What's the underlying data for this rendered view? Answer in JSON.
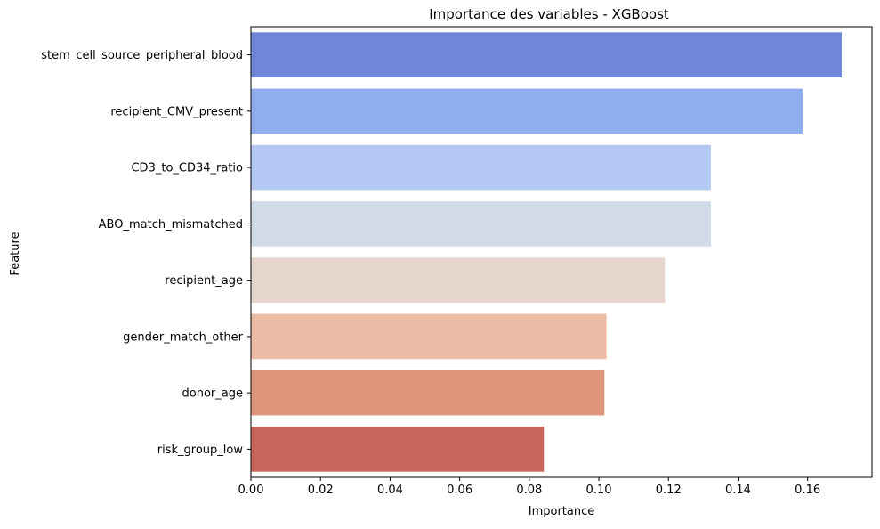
{
  "chart_data": {
    "type": "bar",
    "orientation": "horizontal",
    "title": "Importance des variables - XGBoost",
    "xlabel": "Importance",
    "ylabel": "Feature",
    "categories": [
      "stem_cell_source_peripheral_blood",
      "recipient_CMV_present",
      "CD3_to_CD34_ratio",
      "ABO_match_mismatched",
      "recipient_age",
      "gender_match_other",
      "donor_age",
      "risk_group_low"
    ],
    "values": [
      0.1698,
      0.1586,
      0.1322,
      0.1322,
      0.119,
      0.1022,
      0.1016,
      0.0842
    ],
    "colors": [
      "#6e87d8",
      "#90adee",
      "#b4c9f3",
      "#d1dae8",
      "#e5d5cd",
      "#ecbca6",
      "#e0957d",
      "#c8665b"
    ],
    "xlim": [
      0,
      0.1785
    ],
    "xticks": [
      0.0,
      0.02,
      0.04,
      0.06,
      0.08,
      0.1,
      0.12,
      0.14,
      0.16
    ],
    "xtick_labels": [
      "0.00",
      "0.02",
      "0.04",
      "0.06",
      "0.08",
      "0.10",
      "0.12",
      "0.14",
      "0.16"
    ],
    "grid": false,
    "legend": "none"
  }
}
